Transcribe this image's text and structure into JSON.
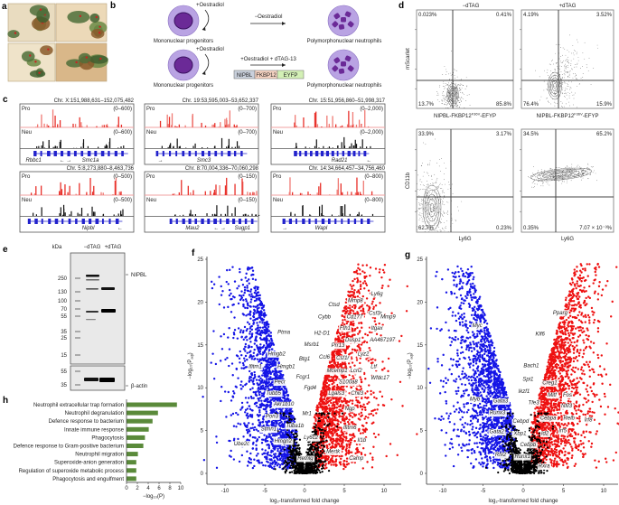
{
  "panel_labels": [
    "a",
    "b",
    "c",
    "d",
    "e",
    "f",
    "g",
    "h"
  ],
  "panel_b": {
    "row1": {
      "treatment_left": "+Oestradiol",
      "arrow_label": "−Oestradiol",
      "left_cell": "Mononuclear progenitors",
      "right_cell": "Polymorphonuclear neutrophils"
    },
    "row2": {
      "treatment_left": "+Oestradiol",
      "arrow_label": "+Oestradiol + dTAG-13",
      "left_cell": "Mononuclear progenitors",
      "right_cell": "Polymorphonuclear neutrophils",
      "construct": [
        {
          "label": "NIPBL",
          "color": "#c9d0dc"
        },
        {
          "label": "FKBP12",
          "color": "#f6d3c2"
        },
        {
          "label": "EYFP",
          "color": "#d3f0b5"
        }
      ]
    },
    "cell_color": "#b9a3e3",
    "nucleus_color": "#6b2a97"
  },
  "panel_c": {
    "pro_color": "#e8302a",
    "neu_color": "#111111",
    "gene_color": "#2222cc",
    "tracks": [
      {
        "region": "Chr. X:151,988,631–152,075,482",
        "pro": "Pro",
        "neu": "Neu",
        "range": "(0–600)",
        "genes": [
          "Rbbc1",
          "← →",
          "Smc1a"
        ]
      },
      {
        "region": "Chr. 19:53,595,003–53,652,337",
        "pro": "Pro",
        "neu": "Neu",
        "range": "(0–700)",
        "genes": [
          "→",
          "Smc3"
        ]
      },
      {
        "region": "Chr. 15:51,956,860–51,998,317",
        "pro": "Pro",
        "neu": "Neu",
        "range": "(0–2,000)",
        "genes": [
          "Rad21",
          "←"
        ]
      },
      {
        "region": "Chr. 5:8,273,880–8,463,736",
        "pro": "Pro",
        "neu": "Neu",
        "range": "(0–500)",
        "genes": [
          "Nipbl",
          "←"
        ]
      },
      {
        "region": "Chr. 8:70,004,336–70,060,298",
        "pro": "Pro",
        "neu": "Neu",
        "range": "(0–150)",
        "genes": [
          "Mau2",
          "← →",
          "Sugp1"
        ]
      },
      {
        "region": "Chr. 14:34,664,457–34,756,460",
        "pro": "Pro",
        "neu": "Neu",
        "range": "(0–800)",
        "genes": [
          "→",
          "Wapl"
        ]
      }
    ]
  },
  "panel_d": {
    "conditions": [
      "−dTAG",
      "+dTAG"
    ],
    "top": {
      "ylabel": "mScarlet",
      "xlabel_main": "NIPBL-FKBP12",
      "xlabel_sup": "F36V",
      "xlabel_end": "-EFYP",
      "quadrants": [
        [
          "0.023%",
          "0.41%",
          "13.7%",
          "85.8%"
        ],
        [
          "4.19%",
          "3.52%",
          "76.4%",
          "15.9%"
        ]
      ]
    },
    "bottom": {
      "ylabel": "CD11b",
      "xlabel": "Ly6G",
      "quadrants": [
        [
          "33.9%",
          "3.17%",
          "62.7%",
          "0.23%"
        ],
        [
          "34.5%",
          "65.2%",
          "0.35%",
          "7.07 × 10⁻³%"
        ]
      ]
    }
  },
  "panel_e": {
    "kda_label": "kDa",
    "lanes": [
      "−dTAG",
      "+dTAG"
    ],
    "markers_main": [
      "250",
      "130",
      "100",
      "70",
      "55",
      "35",
      "25",
      "15"
    ],
    "markers_actin": [
      "55",
      "35"
    ],
    "bands": [
      "NIPBL",
      "β-actin"
    ]
  },
  "chart_data": [
    {
      "id": "f",
      "type": "scatter",
      "xlabel": "log₂-transformed fold change",
      "ylabel": "−log₁₀(P",
      "ylabel_sub": "adj",
      "ylabel_end": ")",
      "xlim": [
        -12,
        12
      ],
      "ylim": [
        0,
        25
      ],
      "xticks": [
        "-10",
        "-5",
        "0",
        "5",
        "10"
      ],
      "yticks": [
        "0",
        "5",
        "10",
        "15",
        "20",
        "25"
      ],
      "colors": {
        "down": "#1515e6",
        "up": "#ee1111",
        "ns": "#000000"
      },
      "annotations": [
        {
          "label": "Ptma",
          "x": -2.6,
          "y": 16.5
        },
        {
          "label": "Hmgb2",
          "x": -3.5,
          "y": 14
        },
        {
          "label": "Ifitm1",
          "x": -6.2,
          "y": 12.5
        },
        {
          "label": "Hmgb1",
          "x": -2.3,
          "y": 12.5
        },
        {
          "label": "Pecr",
          "x": -3.1,
          "y": 10.7
        },
        {
          "label": "Tubb5",
          "x": -3.9,
          "y": 9.4
        },
        {
          "label": "Akr1b10",
          "x": -2.6,
          "y": 8.1
        },
        {
          "label": "Pon3",
          "x": -4.1,
          "y": 6.7
        },
        {
          "label": "Tuba1b",
          "x": -1.2,
          "y": 5.6
        },
        {
          "label": "Stmn1",
          "x": -4.5,
          "y": 5.2
        },
        {
          "label": "Hmgn2",
          "x": -2.7,
          "y": 3.8
        },
        {
          "label": "Ube2c",
          "x": -7.9,
          "y": 3.5
        },
        {
          "label": "Retnlg",
          "x": 0.1,
          "y": 1.8
        },
        {
          "label": "Ly6c2",
          "x": 0.8,
          "y": 4.2
        },
        {
          "label": "Mr1",
          "x": 0.3,
          "y": 7
        },
        {
          "label": "Fgd4",
          "x": 0.7,
          "y": 10
        },
        {
          "label": "Fcgr1",
          "x": -0.2,
          "y": 11.3
        },
        {
          "label": "Btg1",
          "x": 0,
          "y": 13.4
        },
        {
          "label": "Msrb1",
          "x": 0.9,
          "y": 15.1
        },
        {
          "label": "H2-D1",
          "x": 2.2,
          "y": 16.4
        },
        {
          "label": "Ccl6",
          "x": 2.5,
          "y": 13.6
        },
        {
          "label": "Mcemp1",
          "x": 4.1,
          "y": 12
        },
        {
          "label": "Csf1r",
          "x": 4.8,
          "y": 13.5
        },
        {
          "label": "Prr13",
          "x": 4.2,
          "y": 15
        },
        {
          "label": "Cybb",
          "x": 2.5,
          "y": 18.3
        },
        {
          "label": "Ctsd",
          "x": 3.7,
          "y": 19.7
        },
        {
          "label": "Fth1",
          "x": 5.1,
          "y": 17
        },
        {
          "label": "Mmp8",
          "x": 6.4,
          "y": 20.2
        },
        {
          "label": "Cd177",
          "x": 6.3,
          "y": 18.3
        },
        {
          "label": "Dusp1",
          "x": 6.1,
          "y": 15.6
        },
        {
          "label": "Ly6g",
          "x": 9.1,
          "y": 21
        },
        {
          "label": "Csf3r",
          "x": 8.9,
          "y": 18.7
        },
        {
          "label": "Mmp9",
          "x": 10.5,
          "y": 18.3
        },
        {
          "label": "Itgax",
          "x": 9.1,
          "y": 17
        },
        {
          "label": "AA467197",
          "x": 9.8,
          "y": 15.6
        },
        {
          "label": "Lyz2",
          "x": 7.4,
          "y": 14
        },
        {
          "label": "Ltf",
          "x": 8.7,
          "y": 12.5
        },
        {
          "label": "Lcn2",
          "x": 6.5,
          "y": 12
        },
        {
          "label": "Wfdc17",
          "x": 9.5,
          "y": 11.2
        },
        {
          "label": "S100a8",
          "x": 5.5,
          "y": 10.7
        },
        {
          "label": "Lgals3",
          "x": 4,
          "y": 9.4
        },
        {
          "label": "Chil3",
          "x": 6.6,
          "y": 9.4
        },
        {
          "label": "Ngp",
          "x": 5.7,
          "y": 7.6
        },
        {
          "label": "Ifitm6",
          "x": 5.7,
          "y": 5.4
        },
        {
          "label": "Il1b",
          "x": 7.2,
          "y": 3.9
        },
        {
          "label": "Mertk",
          "x": 3.6,
          "y": 2.6
        },
        {
          "label": "Camp",
          "x": 6.5,
          "y": 1.8
        }
      ]
    },
    {
      "id": "g",
      "type": "scatter",
      "xlabel": "log₂-transformed fold change",
      "ylabel": "−log₁₀(P",
      "ylabel_sub": "adj",
      "ylabel_end": ")",
      "xlim": [
        -12,
        12
      ],
      "ylim": [
        0,
        25
      ],
      "xticks": [
        "-10",
        "-5",
        "0",
        "5",
        "10"
      ],
      "yticks": [
        "0",
        "5",
        "10",
        "15",
        "20",
        "25"
      ],
      "colors": {
        "down": "#1515e6",
        "up": "#ee1111",
        "ns": "#000000"
      },
      "annotations": [
        {
          "label": "Pparg",
          "x": 4.6,
          "y": 18.8
        },
        {
          "label": "Klf6",
          "x": 2.1,
          "y": 16.3
        },
        {
          "label": "Myc",
          "x": -5.7,
          "y": 17.3
        },
        {
          "label": "Bach1",
          "x": 1,
          "y": 12.6
        },
        {
          "label": "Spi1",
          "x": 0.6,
          "y": 11
        },
        {
          "label": "Creg1",
          "x": 3.3,
          "y": 10.6
        },
        {
          "label": "Ikzf1",
          "x": 0.1,
          "y": 9.6
        },
        {
          "label": "Mitf",
          "x": 3.6,
          "y": 9.2
        },
        {
          "label": "Fos",
          "x": 5.5,
          "y": 9.2
        },
        {
          "label": "Myb",
          "x": -6,
          "y": 8.7
        },
        {
          "label": "Gata3",
          "x": -2.8,
          "y": 8.5
        },
        {
          "label": "Tfe3",
          "x": 1.3,
          "y": 8.3
        },
        {
          "label": "Nfil3",
          "x": 5.4,
          "y": 7.9
        },
        {
          "label": "Runx3",
          "x": -3.2,
          "y": 7.1
        },
        {
          "label": "Cebpa",
          "x": 3.1,
          "y": 6.5
        },
        {
          "label": "Relb",
          "x": 5.7,
          "y": 6.5
        },
        {
          "label": "Irf8",
          "x": 8.1,
          "y": 6.3
        },
        {
          "label": "Cebpd",
          "x": -0.3,
          "y": 6.1
        },
        {
          "label": "Gata2",
          "x": -3.3,
          "y": 4.9
        },
        {
          "label": "Xbp1",
          "x": -0.4,
          "y": 4.7
        },
        {
          "label": "Id2",
          "x": 2.7,
          "y": 4.7
        },
        {
          "label": "Irf5",
          "x": 4.9,
          "y": 5
        },
        {
          "label": "Cebpb",
          "x": 0.6,
          "y": 3.4
        },
        {
          "label": "Rfx2",
          "x": -2.8,
          "y": 2.2
        },
        {
          "label": "Runx1",
          "x": -0.1,
          "y": 2
        },
        {
          "label": "Rxra",
          "x": 2.6,
          "y": 0.9
        }
      ]
    },
    {
      "id": "h",
      "type": "bar",
      "orientation": "horizontal",
      "categories": [
        "Neutrophil extracellular trap formation",
        "Neutrophil degranulation",
        "Defence response to bacterium",
        "Innate immune response",
        "Phagocytosis",
        "Defence response to Gram-positive bacterium",
        "Neutrophil migration",
        "Superoxide-anion generation",
        "Regulation of superoxide metabolic process",
        "Phagocytosis and engulfment"
      ],
      "values": [
        9.3,
        5.8,
        4.8,
        4.1,
        3.4,
        3.1,
        2.1,
        1.8,
        1.8,
        1.8
      ],
      "xlabel": "−log₁₀(P)",
      "xlim": [
        0,
        10
      ],
      "xticks": [
        "0",
        "2",
        "4",
        "6",
        "8",
        "10"
      ],
      "color": "#5a8a3a"
    }
  ]
}
